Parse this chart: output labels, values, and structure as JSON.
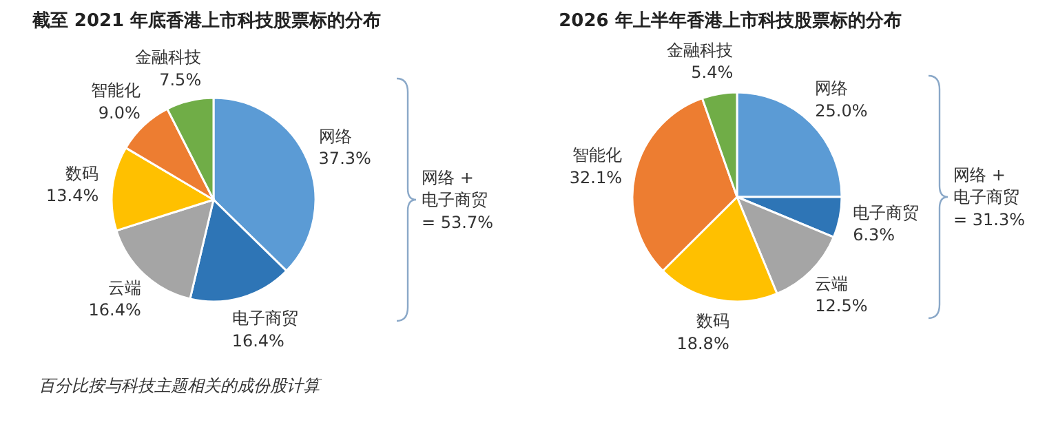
{
  "chart_data": [
    {
      "type": "pie",
      "title": "截至 2021 年底香港上市科技股票标的分布",
      "categories": [
        "网络",
        "电子商贸",
        "云端",
        "数码",
        "智能化",
        "金融科技"
      ],
      "values": [
        37.3,
        16.4,
        16.4,
        13.4,
        9.0,
        7.5
      ],
      "value_labels": [
        "37.3%",
        "16.4%",
        "16.4%",
        "13.4%",
        "9.0%",
        "7.5%"
      ],
      "colors": [
        "#5b9bd5",
        "#2e75b6",
        "#a5a5a5",
        "#ffc000",
        "#ed7d31",
        "#70ad47"
      ],
      "annotations": [
        "网络 +\n电子商贸\n= 53.7%",
        "百分比按与科技主题相关的成份股计算"
      ]
    },
    {
      "type": "pie",
      "title": "2026 年上半年香港上市科技股票标的分布",
      "categories": [
        "网络",
        "电子商贸",
        "云端",
        "数码",
        "智能化",
        "金融科技"
      ],
      "values": [
        25.0,
        6.3,
        12.5,
        18.8,
        32.1,
        5.4
      ],
      "value_labels": [
        "25.0%",
        "6.3%",
        "12.5%",
        "18.8%",
        "32.1%",
        "5.4%"
      ],
      "colors": [
        "#5b9bd5",
        "#2e75b6",
        "#a5a5a5",
        "#ffc000",
        "#ed7d31",
        "#70ad47"
      ],
      "annotations": [
        "网络 +\n电子商贸\n= 31.3%"
      ]
    }
  ]
}
